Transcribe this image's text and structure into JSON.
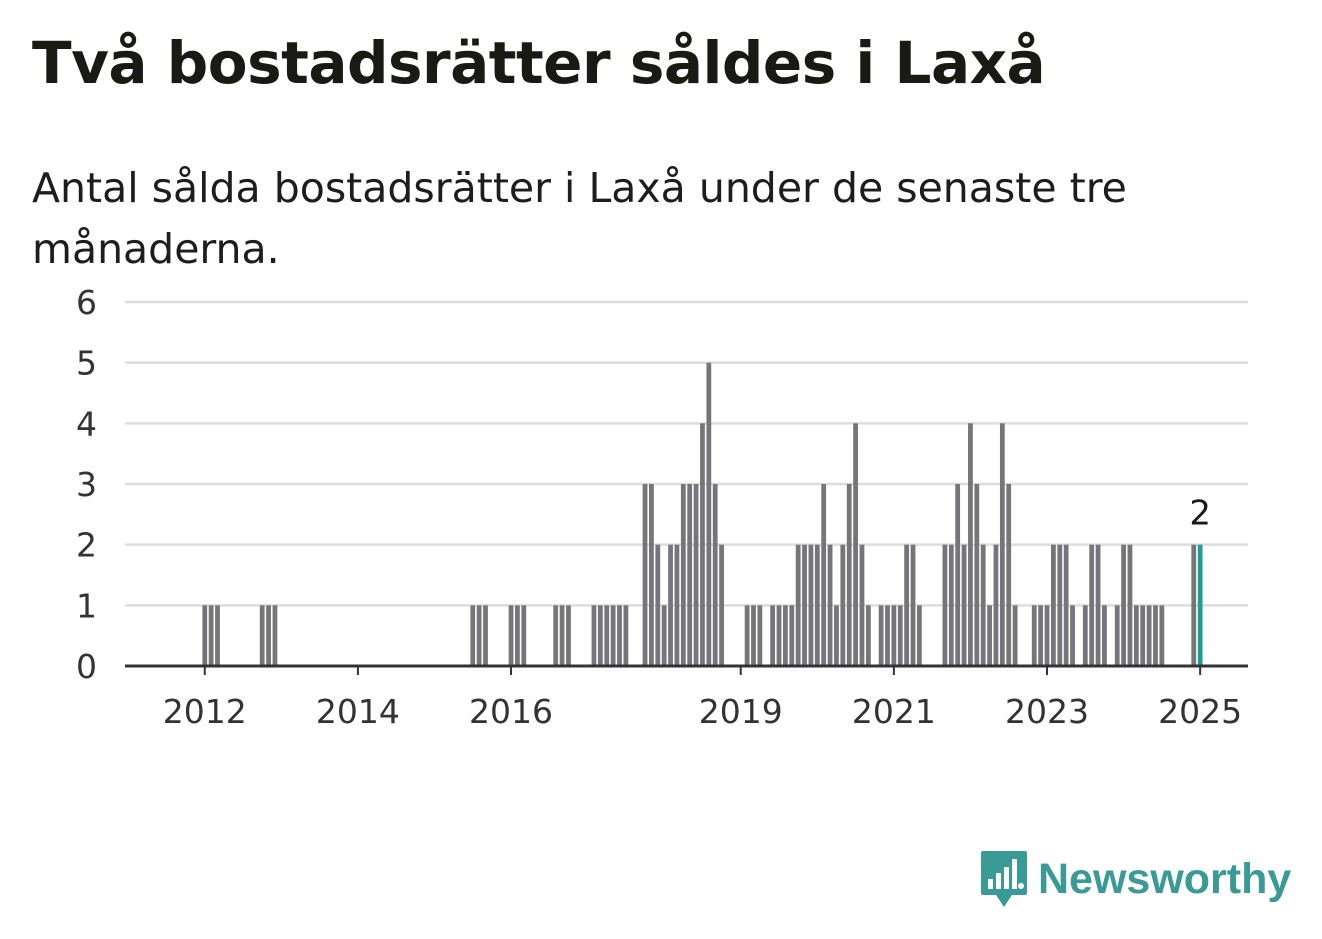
{
  "title": "Två bostadsrätter såldes i Laxå",
  "subtitle": "Antal sålda bostadsrätter i Laxå under de senaste tre månaderna.",
  "brand": {
    "name": "Newsworthy",
    "color": "#3a9a96",
    "icon": "bar-chart-speech-bubble-icon"
  },
  "colors": {
    "bar": "#75757a",
    "highlight": "#1f9e96",
    "grid": "#dddddd",
    "axis": "#333333"
  },
  "chart_data": {
    "type": "bar",
    "title": "",
    "xlabel": "",
    "ylabel": "",
    "ylim": [
      0,
      6
    ],
    "yticks": [
      0,
      1,
      2,
      3,
      4,
      5,
      6
    ],
    "xticks": [
      {
        "label": "2012",
        "x": "2012-01"
      },
      {
        "label": "2014",
        "x": "2014-01"
      },
      {
        "label": "2016",
        "x": "2016-01"
      },
      {
        "label": "2019",
        "x": "2019-01"
      },
      {
        "label": "2021",
        "x": "2021-01"
      },
      {
        "label": "2023",
        "x": "2023-01"
      },
      {
        "label": "2025",
        "x": "2025-01"
      }
    ],
    "grid": true,
    "x_start": "2011-01",
    "x_end": "2025-08",
    "annotation": {
      "x": "2025-01",
      "text": "2"
    },
    "bars": [
      {
        "x": "2012-01",
        "value": 1
      },
      {
        "x": "2012-02",
        "value": 1
      },
      {
        "x": "2012-03",
        "value": 1
      },
      {
        "x": "2012-10",
        "value": 1
      },
      {
        "x": "2012-11",
        "value": 1
      },
      {
        "x": "2012-12",
        "value": 1
      },
      {
        "x": "2015-07",
        "value": 1
      },
      {
        "x": "2015-08",
        "value": 1
      },
      {
        "x": "2015-09",
        "value": 1
      },
      {
        "x": "2016-01",
        "value": 1
      },
      {
        "x": "2016-02",
        "value": 1
      },
      {
        "x": "2016-03",
        "value": 1
      },
      {
        "x": "2016-08",
        "value": 1
      },
      {
        "x": "2016-09",
        "value": 1
      },
      {
        "x": "2016-10",
        "value": 1
      },
      {
        "x": "2017-02",
        "value": 1
      },
      {
        "x": "2017-03",
        "value": 1
      },
      {
        "x": "2017-04",
        "value": 1
      },
      {
        "x": "2017-05",
        "value": 1
      },
      {
        "x": "2017-06",
        "value": 1
      },
      {
        "x": "2017-07",
        "value": 1
      },
      {
        "x": "2017-10",
        "value": 3
      },
      {
        "x": "2017-11",
        "value": 3
      },
      {
        "x": "2017-12",
        "value": 2
      },
      {
        "x": "2018-01",
        "value": 1
      },
      {
        "x": "2018-02",
        "value": 2
      },
      {
        "x": "2018-03",
        "value": 2
      },
      {
        "x": "2018-04",
        "value": 3
      },
      {
        "x": "2018-05",
        "value": 3
      },
      {
        "x": "2018-06",
        "value": 3
      },
      {
        "x": "2018-07",
        "value": 4
      },
      {
        "x": "2018-08",
        "value": 5
      },
      {
        "x": "2018-09",
        "value": 3
      },
      {
        "x": "2018-10",
        "value": 2
      },
      {
        "x": "2019-02",
        "value": 1
      },
      {
        "x": "2019-03",
        "value": 1
      },
      {
        "x": "2019-04",
        "value": 1
      },
      {
        "x": "2019-06",
        "value": 1
      },
      {
        "x": "2019-07",
        "value": 1
      },
      {
        "x": "2019-08",
        "value": 1
      },
      {
        "x": "2019-09",
        "value": 1
      },
      {
        "x": "2019-10",
        "value": 2
      },
      {
        "x": "2019-11",
        "value": 2
      },
      {
        "x": "2019-12",
        "value": 2
      },
      {
        "x": "2020-01",
        "value": 2
      },
      {
        "x": "2020-02",
        "value": 3
      },
      {
        "x": "2020-03",
        "value": 2
      },
      {
        "x": "2020-04",
        "value": 1
      },
      {
        "x": "2020-05",
        "value": 2
      },
      {
        "x": "2020-06",
        "value": 3
      },
      {
        "x": "2020-07",
        "value": 4
      },
      {
        "x": "2020-08",
        "value": 2
      },
      {
        "x": "2020-09",
        "value": 1
      },
      {
        "x": "2020-11",
        "value": 1
      },
      {
        "x": "2020-12",
        "value": 1
      },
      {
        "x": "2021-01",
        "value": 1
      },
      {
        "x": "2021-02",
        "value": 1
      },
      {
        "x": "2021-03",
        "value": 2
      },
      {
        "x": "2021-04",
        "value": 2
      },
      {
        "x": "2021-05",
        "value": 1
      },
      {
        "x": "2021-09",
        "value": 2
      },
      {
        "x": "2021-10",
        "value": 2
      },
      {
        "x": "2021-11",
        "value": 3
      },
      {
        "x": "2021-12",
        "value": 2
      },
      {
        "x": "2022-01",
        "value": 4
      },
      {
        "x": "2022-02",
        "value": 3
      },
      {
        "x": "2022-03",
        "value": 2
      },
      {
        "x": "2022-04",
        "value": 1
      },
      {
        "x": "2022-05",
        "value": 2
      },
      {
        "x": "2022-06",
        "value": 4
      },
      {
        "x": "2022-07",
        "value": 3
      },
      {
        "x": "2022-08",
        "value": 1
      },
      {
        "x": "2022-11",
        "value": 1
      },
      {
        "x": "2022-12",
        "value": 1
      },
      {
        "x": "2023-01",
        "value": 1
      },
      {
        "x": "2023-02",
        "value": 2
      },
      {
        "x": "2023-03",
        "value": 2
      },
      {
        "x": "2023-04",
        "value": 2
      },
      {
        "x": "2023-05",
        "value": 1
      },
      {
        "x": "2023-07",
        "value": 1
      },
      {
        "x": "2023-08",
        "value": 2
      },
      {
        "x": "2023-09",
        "value": 2
      },
      {
        "x": "2023-10",
        "value": 1
      },
      {
        "x": "2023-12",
        "value": 1
      },
      {
        "x": "2024-01",
        "value": 2
      },
      {
        "x": "2024-02",
        "value": 2
      },
      {
        "x": "2024-03",
        "value": 1
      },
      {
        "x": "2024-04",
        "value": 1
      },
      {
        "x": "2024-05",
        "value": 1
      },
      {
        "x": "2024-06",
        "value": 1
      },
      {
        "x": "2024-07",
        "value": 1
      },
      {
        "x": "2024-12",
        "value": 2
      },
      {
        "x": "2025-01",
        "value": 2,
        "highlight": true
      }
    ]
  }
}
